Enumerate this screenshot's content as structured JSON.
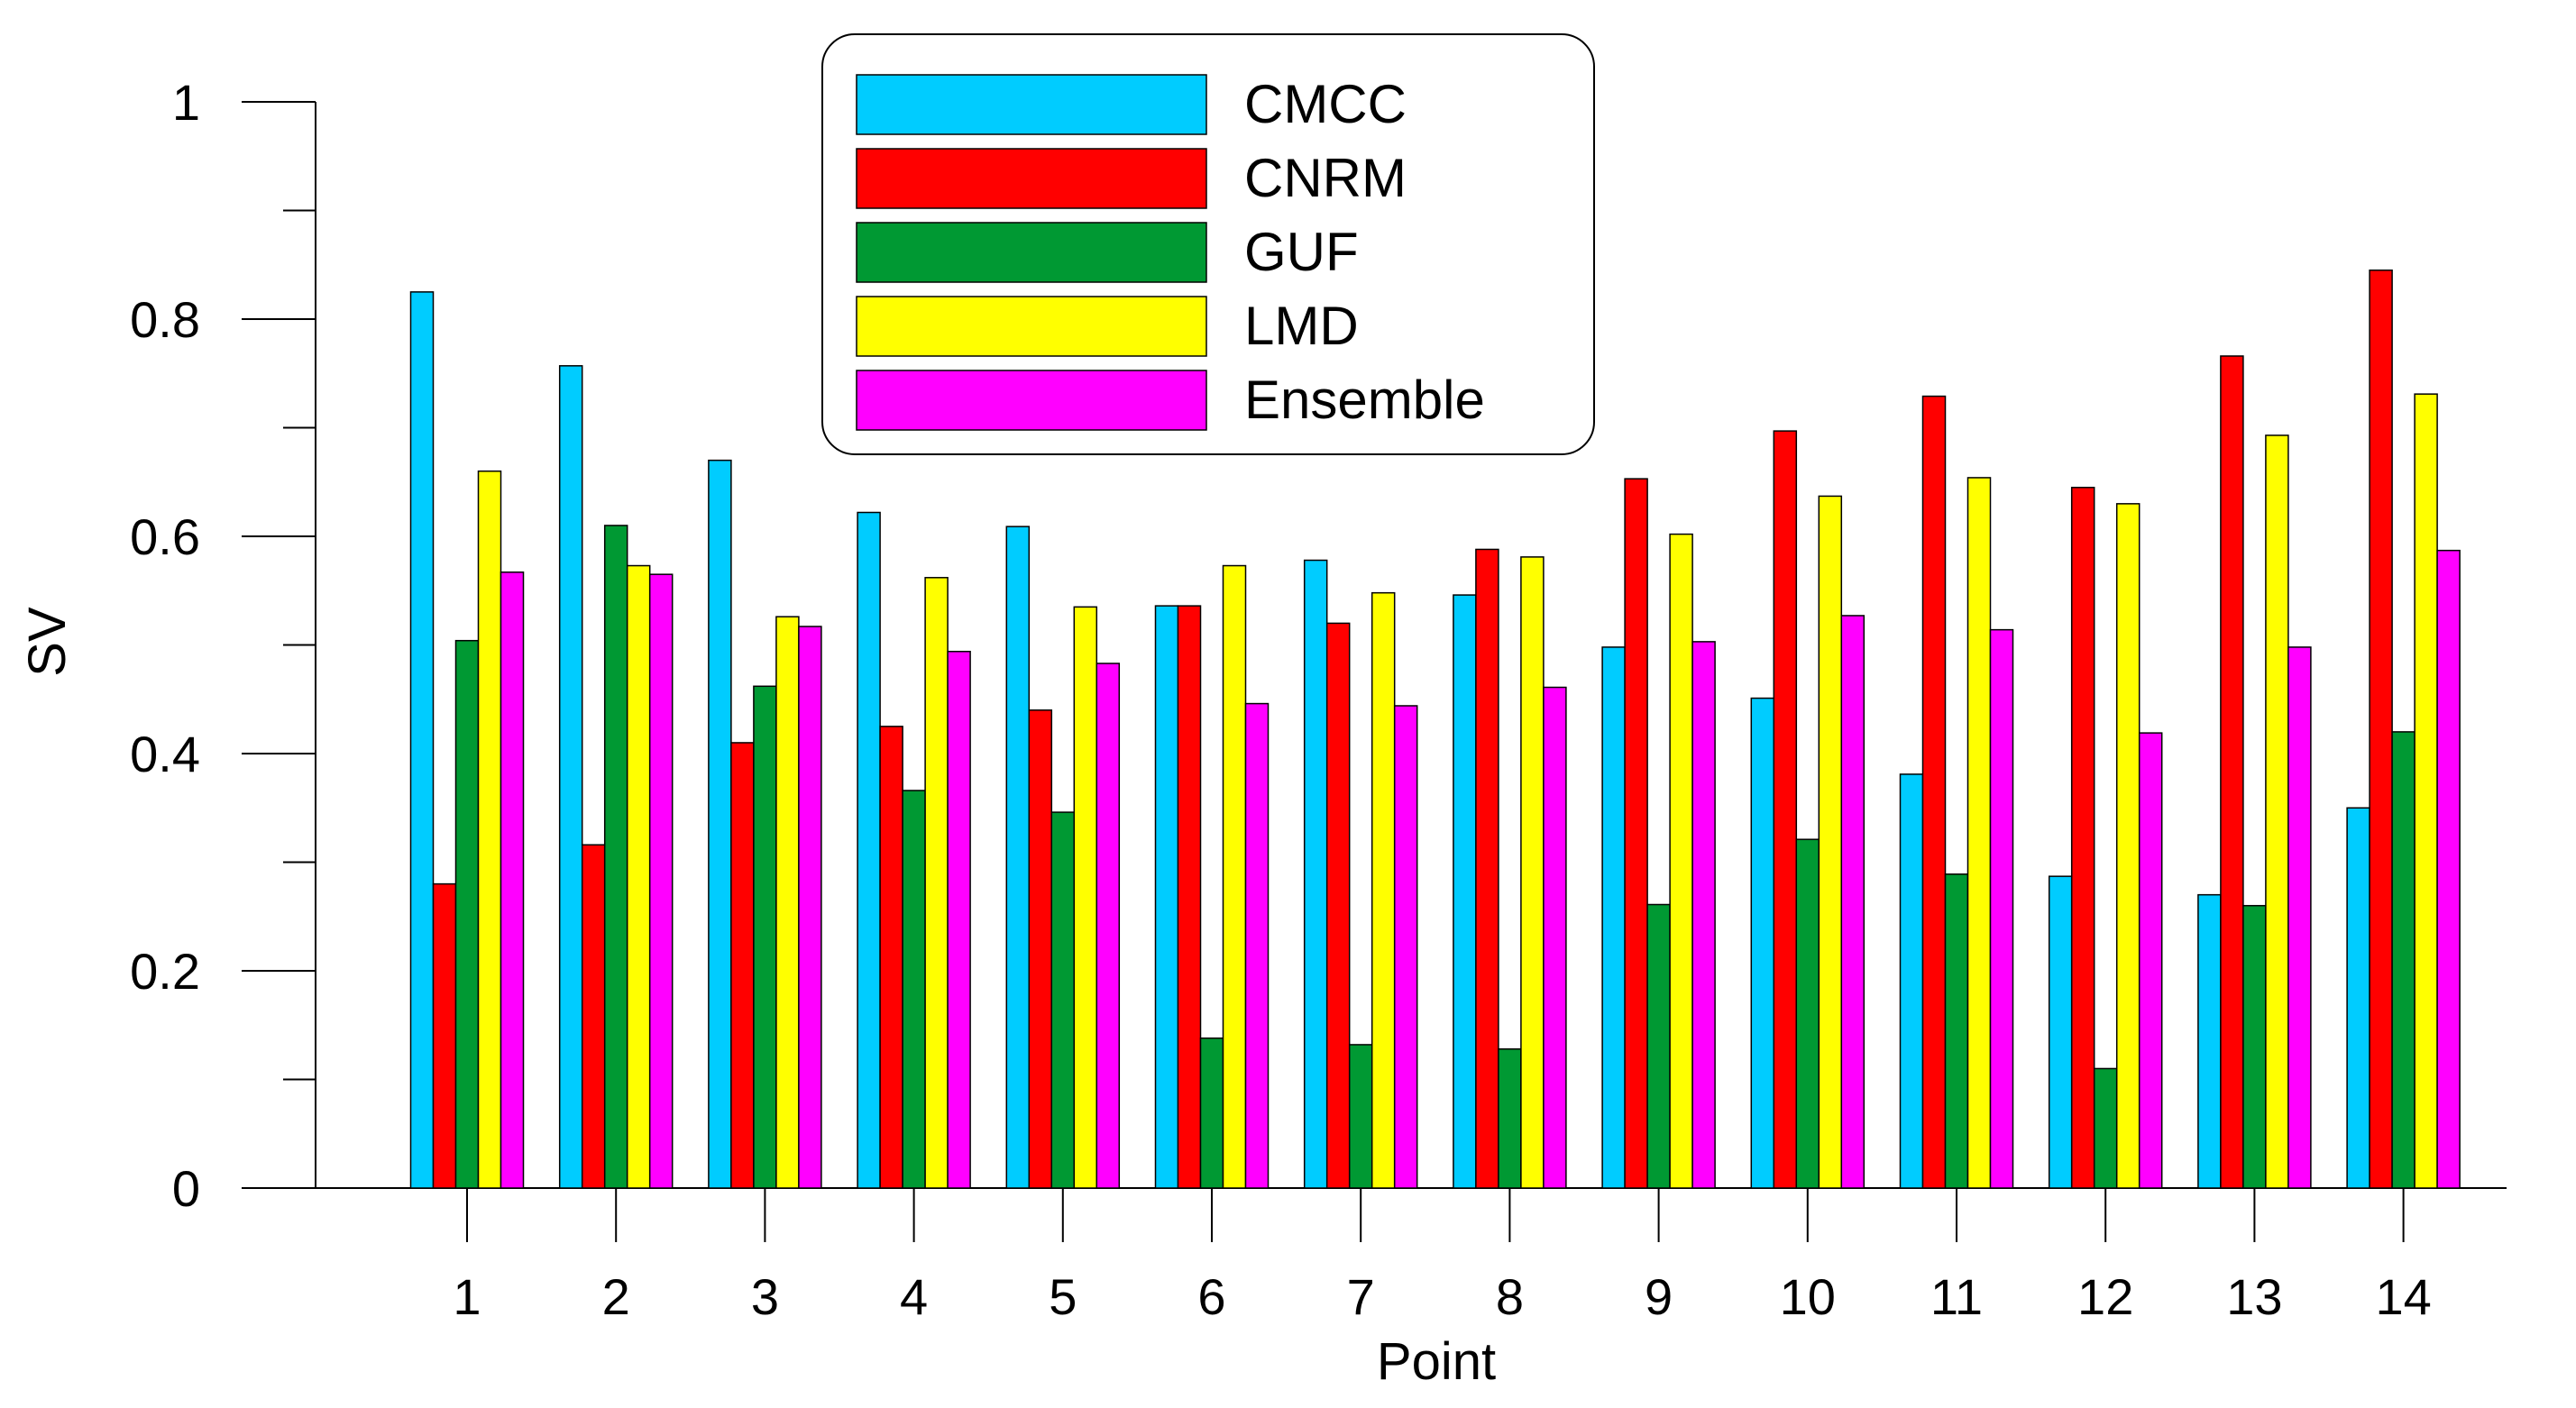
{
  "chart_data": {
    "type": "bar",
    "title": "",
    "xlabel": "Point",
    "ylabel": "SV",
    "ylim": [
      0,
      1
    ],
    "yticks": [
      0,
      0.2,
      0.4,
      0.6,
      0.8,
      1
    ],
    "ytick_labels": [
      "0",
      "0.2",
      "0.4",
      "0.6",
      "0.8",
      "1"
    ],
    "grid": false,
    "legend_position": "top-center",
    "categories": [
      "1",
      "2",
      "3",
      "4",
      "5",
      "6",
      "7",
      "8",
      "9",
      "10",
      "11",
      "12",
      "13",
      "14"
    ],
    "series": [
      {
        "name": "CMCC",
        "color": "#00ccff",
        "values": [
          0.825,
          0.757,
          0.67,
          0.622,
          0.609,
          0.536,
          0.578,
          0.546,
          0.498,
          0.451,
          0.381,
          0.287,
          0.27,
          0.35
        ]
      },
      {
        "name": "CNRM",
        "color": "#ff0000",
        "values": [
          0.28,
          0.316,
          0.41,
          0.425,
          0.44,
          0.536,
          0.52,
          0.588,
          0.653,
          0.697,
          0.729,
          0.645,
          0.766,
          0.845
        ]
      },
      {
        "name": "GUF",
        "color": "#009933",
        "values": [
          0.504,
          0.61,
          0.462,
          0.366,
          0.346,
          0.138,
          0.132,
          0.128,
          0.261,
          0.321,
          0.289,
          0.11,
          0.26,
          0.42
        ]
      },
      {
        "name": "LMD",
        "color": "#ffff00",
        "values": [
          0.66,
          0.573,
          0.526,
          0.562,
          0.535,
          0.573,
          0.548,
          0.581,
          0.602,
          0.637,
          0.654,
          0.63,
          0.693,
          0.731
        ]
      },
      {
        "name": "Ensemble",
        "color": "#ff00ff",
        "values": [
          0.567,
          0.565,
          0.517,
          0.494,
          0.483,
          0.446,
          0.444,
          0.461,
          0.503,
          0.527,
          0.514,
          0.419,
          0.498,
          0.587
        ]
      }
    ]
  }
}
